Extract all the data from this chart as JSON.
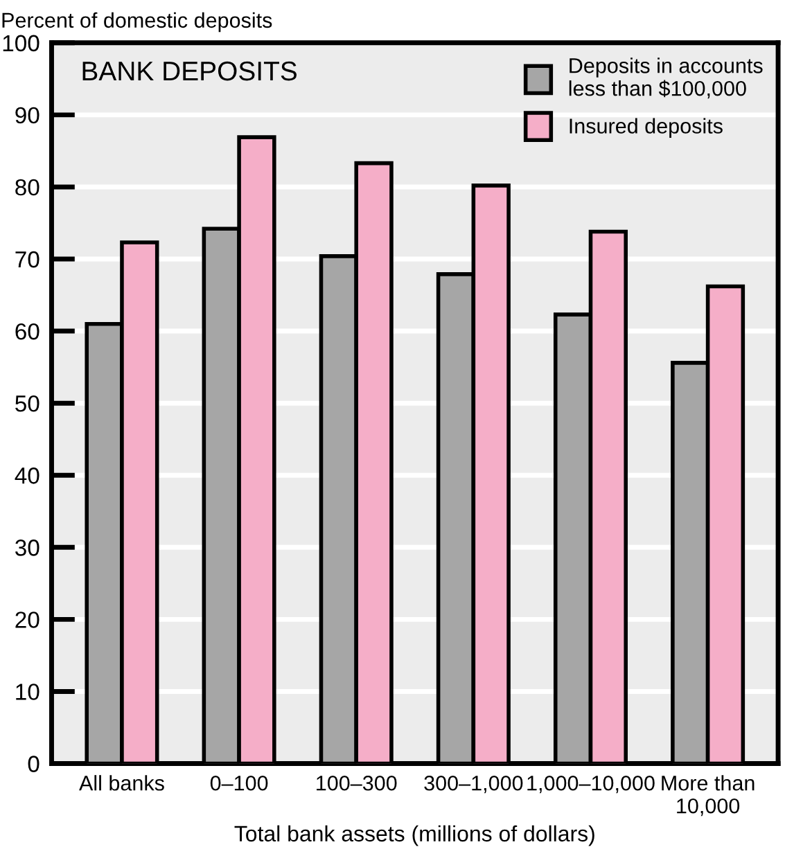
{
  "chart_data": {
    "type": "bar",
    "title": "BANK DEPOSITS",
    "ylabel": "Percent of domestic deposits",
    "xlabel": "Total bank assets (millions of dollars)",
    "categories": [
      "All banks",
      "0–100",
      "100–300",
      "300–1,000",
      "1,000–10,000",
      "More than\n10,000"
    ],
    "series": [
      {
        "name": "Deposits in accounts\nless than $100,000",
        "color": "#a6a6a6",
        "values": [
          61.0,
          74.2,
          70.4,
          67.9,
          62.3,
          55.6
        ]
      },
      {
        "name": "Insured deposits",
        "color": "#f5aec8",
        "values": [
          72.3,
          86.9,
          83.3,
          80.2,
          73.8,
          66.2
        ]
      }
    ],
    "ylim": [
      0,
      100
    ],
    "yticks": [
      0,
      10,
      20,
      30,
      40,
      50,
      60,
      70,
      80,
      90,
      100
    ],
    "grid": "y",
    "legend": "top right"
  }
}
